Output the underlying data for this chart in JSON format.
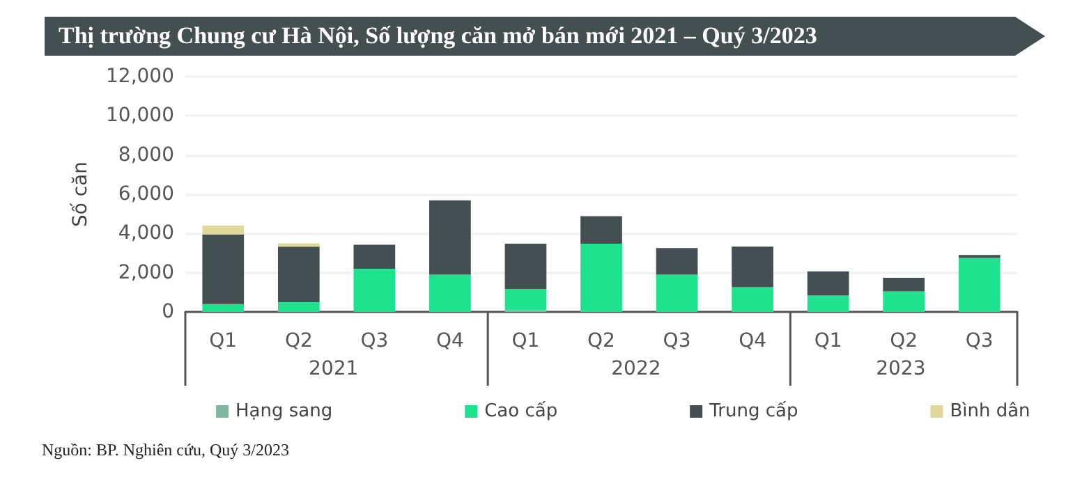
{
  "chart_data": {
    "type": "bar",
    "stacked": true,
    "title": "Thị trường Chung cư Hà Nội, Số lượng căn mở bán mới 2021 – Quý 3/2023",
    "ylabel": "Số căn",
    "categories": [
      "Q1",
      "Q2",
      "Q3",
      "Q4",
      "Q1",
      "Q2",
      "Q3",
      "Q4",
      "Q1",
      "Q2",
      "Q3"
    ],
    "series": [
      {
        "name": "Hạng sang",
        "color": "#7fb8a0",
        "values": [
          0,
          0,
          0,
          0,
          80,
          0,
          0,
          0,
          0,
          0,
          0
        ]
      },
      {
        "name": "Cao cấp",
        "color": "#1de38f",
        "values": [
          400,
          500,
          2200,
          1900,
          1090,
          3480,
          1900,
          1260,
          830,
          1050,
          2750
        ]
      },
      {
        "name": "Trung cấp",
        "color": "#434f50",
        "values": [
          3550,
          2830,
          1230,
          3790,
          2310,
          1400,
          1360,
          2070,
          1240,
          690,
          150
        ]
      },
      {
        "name": "Bình dân",
        "color": "#e0d898",
        "values": [
          450,
          170,
          0,
          0,
          0,
          0,
          0,
          0,
          0,
          0,
          0
        ]
      }
    ],
    "ylim": [
      0,
      12000
    ],
    "yticks": [
      0,
      {
        "value": 2000,
        "label": "2,000"
      },
      {
        "value": 4000,
        "label": "4,000"
      },
      {
        "value": 6000,
        "label": "6,000"
      },
      {
        "value": 8000,
        "label": "8,000"
      },
      {
        "value": 10000,
        "label": "10,000"
      },
      {
        "value": 12000,
        "label": "12,000"
      }
    ],
    "grid": "y",
    "legend": "bottom",
    "annotations": [
      "2021",
      "2022",
      "2023",
      "Nguồn: BP. Nghiên cứu, Quý 3/2023"
    ]
  }
}
